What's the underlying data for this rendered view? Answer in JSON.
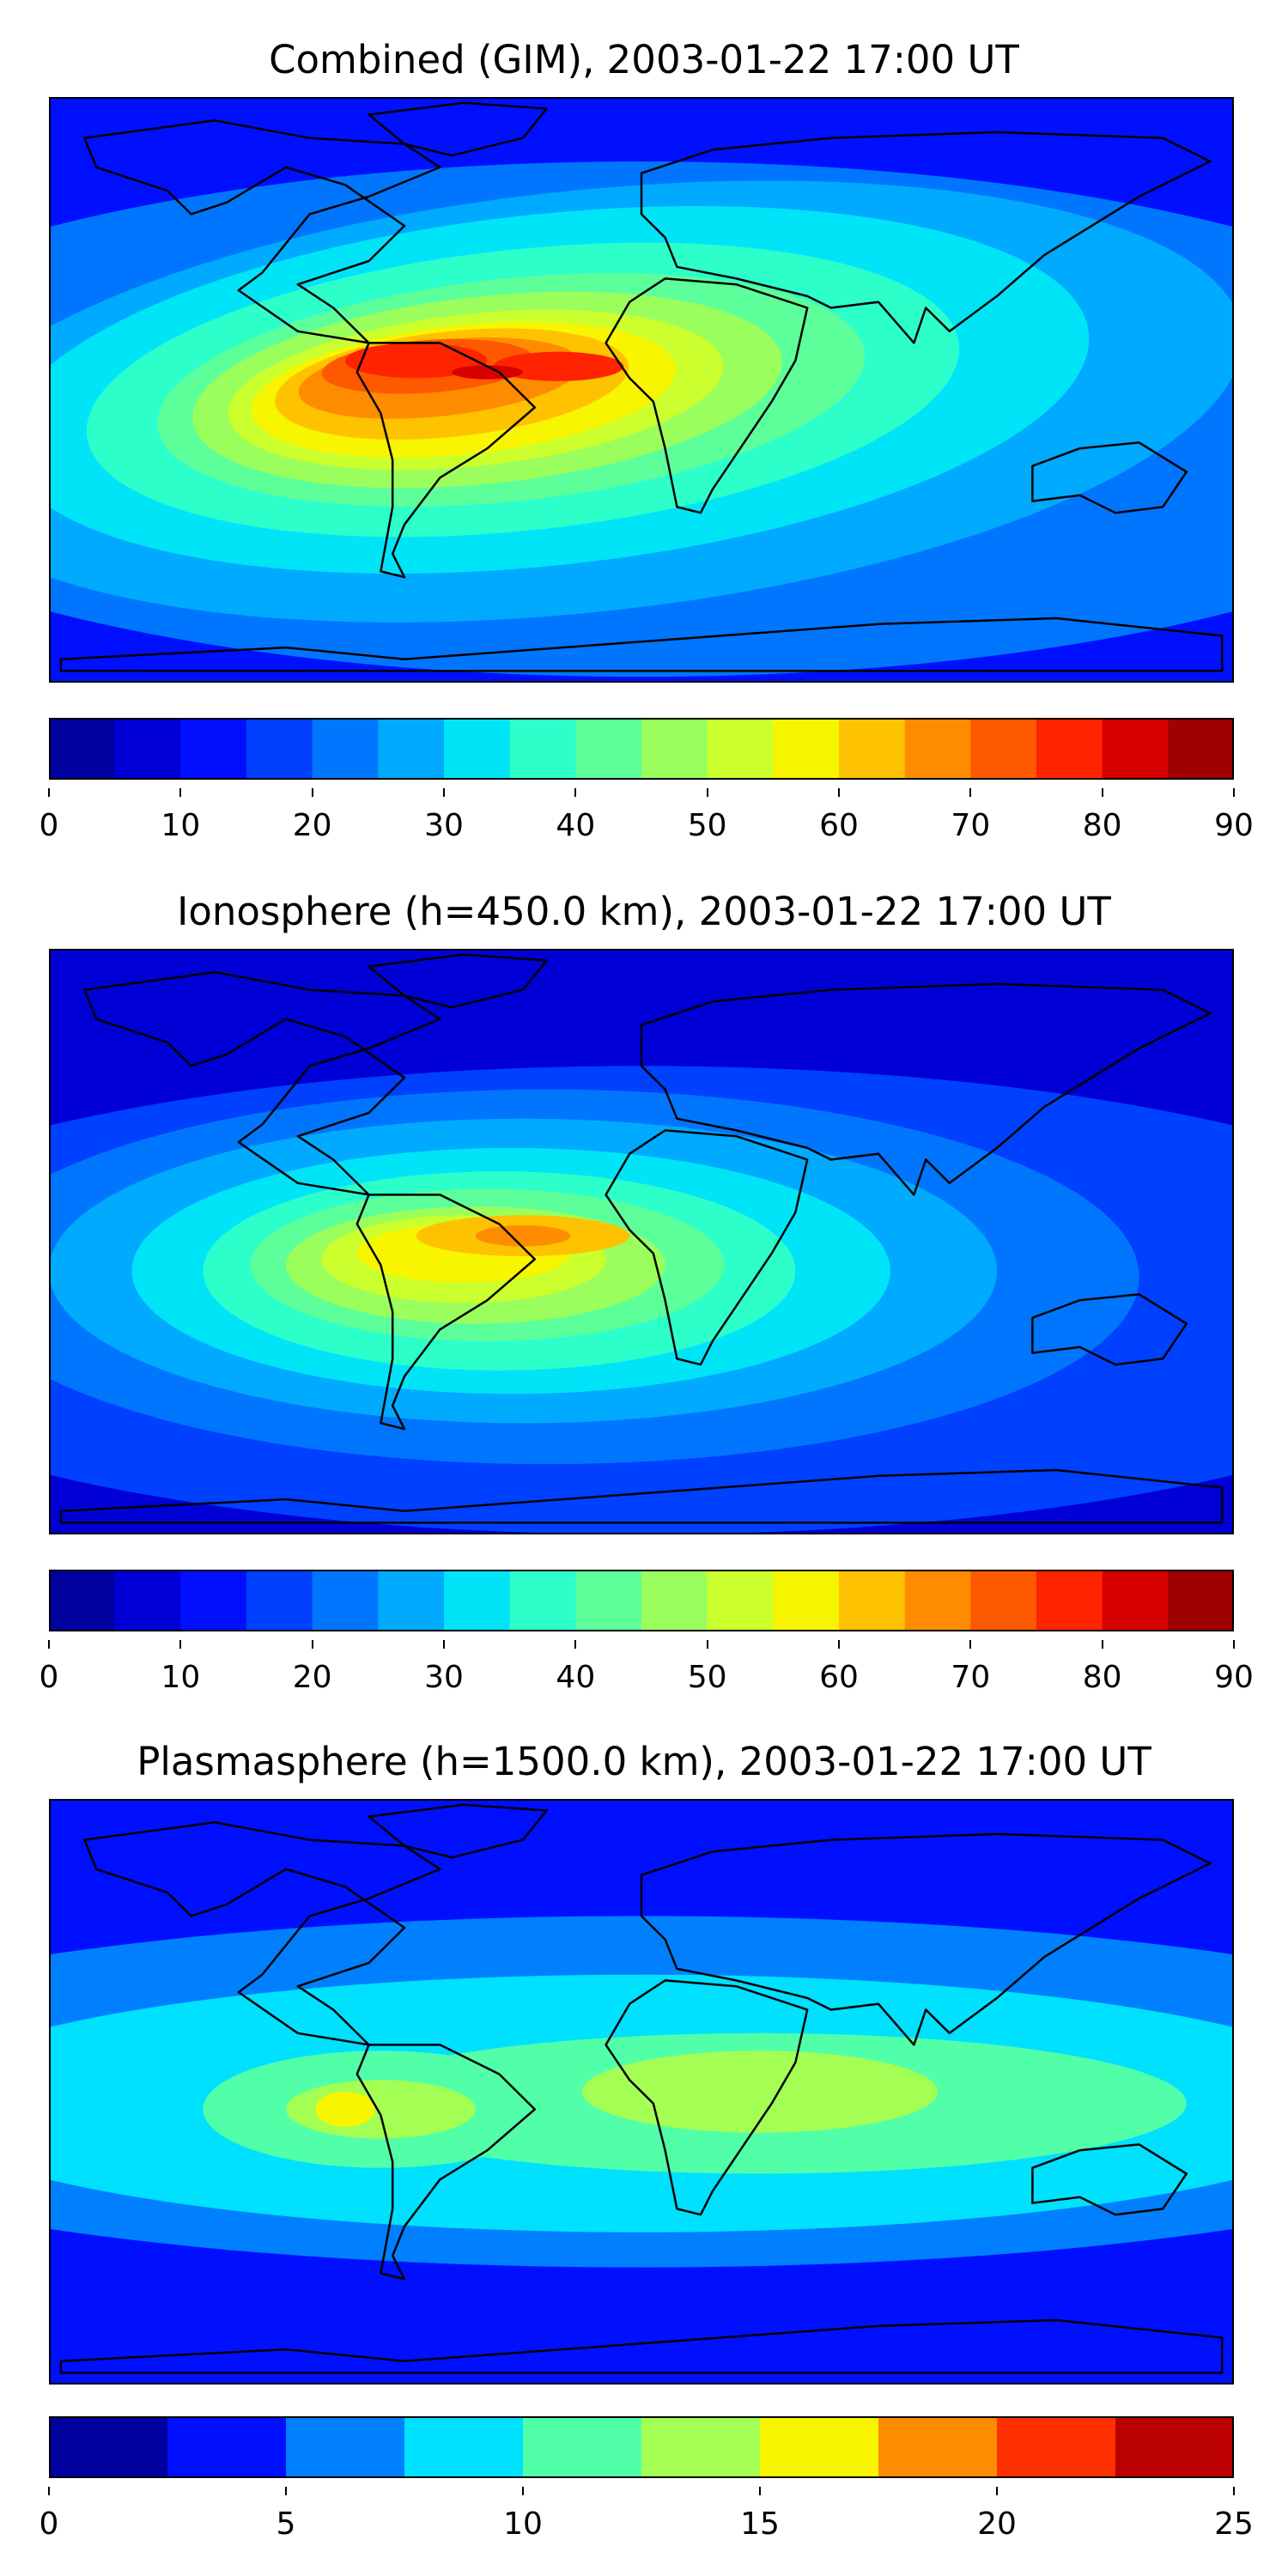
{
  "chart_data": [
    {
      "type": "heatmap",
      "title": "Combined (GIM), 2003-01-22 17:00 UT",
      "colorbar": {
        "levels": [
          0,
          5,
          10,
          15,
          20,
          25,
          30,
          35,
          40,
          45,
          50,
          55,
          60,
          65,
          70,
          75,
          80,
          85,
          90
        ],
        "tick_values": [
          0,
          10,
          20,
          30,
          40,
          50,
          60,
          70,
          80,
          90
        ],
        "tick_labels": [
          "0",
          "10",
          "20",
          "30",
          "40",
          "50",
          "60",
          "70",
          "80",
          "90"
        ],
        "colors": [
          "#00009f",
          "#0000d6",
          "#0010ff",
          "#0040ff",
          "#0076ff",
          "#00aaff",
          "#00e4f8",
          "#2dffcb",
          "#5dff9a",
          "#9aff5d",
          "#cbff2d",
          "#f8f500",
          "#ffc200",
          "#ff8c00",
          "#ff5900",
          "#ff2300",
          "#d60000",
          "#9f0000"
        ],
        "orientation": "horizontal",
        "placement": "below"
      },
      "peak_value": 80,
      "peak_region": "South America / equatorial Atlantic",
      "background_value": 12
    },
    {
      "type": "heatmap",
      "title": "Ionosphere  (h=450.0 km), 2003-01-22 17:00 UT",
      "colorbar": {
        "levels": [
          0,
          5,
          10,
          15,
          20,
          25,
          30,
          35,
          40,
          45,
          50,
          55,
          60,
          65,
          70,
          75,
          80,
          85,
          90
        ],
        "tick_values": [
          0,
          10,
          20,
          30,
          40,
          50,
          60,
          70,
          80,
          90
        ],
        "tick_labels": [
          "0",
          "10",
          "20",
          "30",
          "40",
          "50",
          "60",
          "70",
          "80",
          "90"
        ],
        "colors": [
          "#00009f",
          "#0000d6",
          "#0010ff",
          "#0040ff",
          "#0076ff",
          "#00aaff",
          "#00e4f8",
          "#2dffcb",
          "#5dff9a",
          "#9aff5d",
          "#cbff2d",
          "#f8f500",
          "#ffc200",
          "#ff8c00",
          "#ff5900",
          "#ff2300",
          "#d60000",
          "#9f0000"
        ],
        "orientation": "horizontal",
        "placement": "below"
      },
      "peak_value": 65,
      "peak_region": "Northern South America",
      "background_value": 8
    },
    {
      "type": "heatmap",
      "title": "Plasmasphere (h=1500.0 km), 2003-01-22 17:00 UT",
      "colorbar": {
        "levels": [
          0,
          2.5,
          5,
          7.5,
          10,
          12.5,
          15,
          17.5,
          20,
          22.5,
          25
        ],
        "tick_values": [
          0,
          5,
          10,
          15,
          20,
          25
        ],
        "tick_labels": [
          "0",
          "5",
          "10",
          "15",
          "20",
          "25"
        ],
        "colors": [
          "#00009f",
          "#0010ff",
          "#0080ff",
          "#00e0ff",
          "#50ffa8",
          "#a4ff54",
          "#f8f500",
          "#ff8c00",
          "#ff3000",
          "#bb0000"
        ],
        "orientation": "horizontal",
        "placement": "below"
      },
      "peak_value": 16,
      "peak_region": "Eastern Pacific near South America",
      "background_value": 3
    }
  ]
}
